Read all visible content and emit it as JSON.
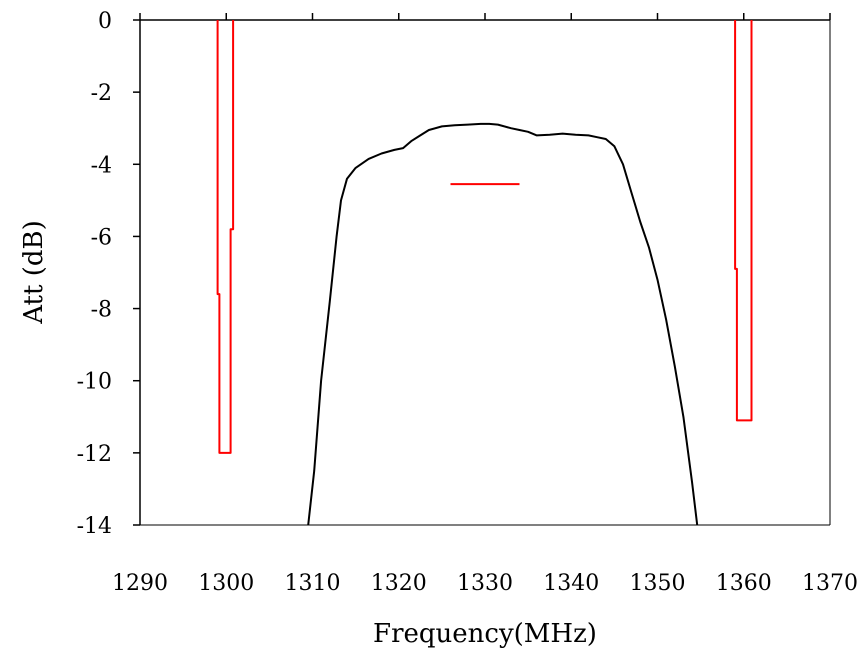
{
  "chart_data": {
    "type": "line",
    "title": "",
    "xlabel": "Frequency(MHz)",
    "ylabel": "Att (dB)",
    "xlim": [
      1290,
      1370
    ],
    "ylim": [
      -14,
      0
    ],
    "x_ticks": [
      1290,
      1300,
      1310,
      1320,
      1330,
      1340,
      1350,
      1360,
      1370
    ],
    "x_tick_labels": [
      "1290",
      "1300",
      "1310",
      "1320",
      "1330",
      "1340",
      "1350",
      "1360",
      "1370"
    ],
    "y_ticks": [
      0,
      -2,
      -4,
      -6,
      -8,
      -10,
      -12,
      -14
    ],
    "y_tick_labels": [
      "0",
      "-2",
      "-4",
      "-6",
      "-8",
      "-10",
      "-12",
      "-14"
    ],
    "grid": false,
    "legend": "none",
    "series": [
      {
        "color": "#000000",
        "points": [
          [
            1309.5,
            -14.0
          ],
          [
            1310.2,
            -12.5
          ],
          [
            1311.0,
            -10.0
          ],
          [
            1312.0,
            -7.8
          ],
          [
            1312.8,
            -6.0
          ],
          [
            1313.3,
            -5.0
          ],
          [
            1314.0,
            -4.4
          ],
          [
            1315.0,
            -4.1
          ],
          [
            1316.5,
            -3.85
          ],
          [
            1318.0,
            -3.7
          ],
          [
            1319.5,
            -3.6
          ],
          [
            1320.5,
            -3.55
          ],
          [
            1321.5,
            -3.35
          ],
          [
            1322.5,
            -3.2
          ],
          [
            1323.5,
            -3.05
          ],
          [
            1325.0,
            -2.95
          ],
          [
            1326.5,
            -2.92
          ],
          [
            1328.0,
            -2.9
          ],
          [
            1329.5,
            -2.88
          ],
          [
            1330.5,
            -2.88
          ],
          [
            1331.5,
            -2.9
          ],
          [
            1333.0,
            -3.0
          ],
          [
            1334.0,
            -3.05
          ],
          [
            1335.0,
            -3.1
          ],
          [
            1336.0,
            -3.2
          ],
          [
            1337.5,
            -3.18
          ],
          [
            1339.0,
            -3.15
          ],
          [
            1340.5,
            -3.18
          ],
          [
            1342.0,
            -3.2
          ],
          [
            1343.0,
            -3.25
          ],
          [
            1344.0,
            -3.3
          ],
          [
            1345.0,
            -3.5
          ],
          [
            1346.0,
            -4.0
          ],
          [
            1347.0,
            -4.8
          ],
          [
            1348.0,
            -5.6
          ],
          [
            1349.0,
            -6.3
          ],
          [
            1350.0,
            -7.2
          ],
          [
            1351.0,
            -8.3
          ],
          [
            1352.0,
            -9.6
          ],
          [
            1353.0,
            -11.0
          ],
          [
            1354.0,
            -12.8
          ],
          [
            1354.6,
            -14.0
          ]
        ]
      },
      {
        "color": "#ff0000",
        "points": [
          [
            1299.0,
            0.0
          ],
          [
            1299.0,
            -7.6
          ],
          [
            1299.2,
            -7.6
          ],
          [
            1299.2,
            -12.0
          ],
          [
            1300.5,
            -12.0
          ],
          [
            1300.5,
            -5.8
          ],
          [
            1300.8,
            -5.8
          ],
          [
            1300.8,
            0.0
          ]
        ]
      },
      {
        "color": "#ff0000",
        "points": [
          [
            1359.0,
            0.0
          ],
          [
            1359.0,
            -6.9
          ],
          [
            1359.2,
            -6.9
          ],
          [
            1359.2,
            -11.1
          ],
          [
            1360.9,
            -11.1
          ],
          [
            1360.9,
            0.0
          ]
        ]
      },
      {
        "color": "#ff0000",
        "points": [
          [
            1326.0,
            -4.55
          ],
          [
            1334.0,
            -4.55
          ]
        ]
      }
    ]
  }
}
